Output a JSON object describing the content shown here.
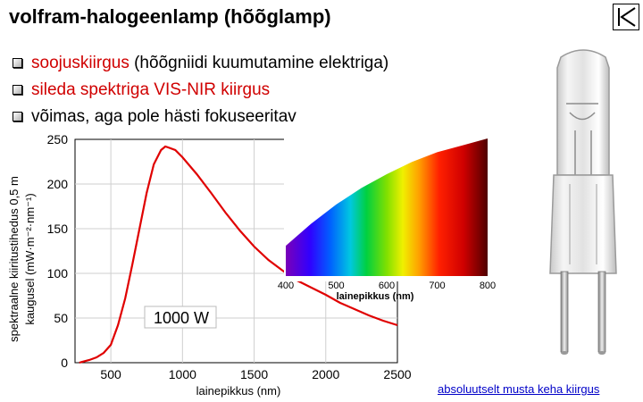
{
  "title": "volfram-halogeenlamp (hõõglamp)",
  "bullets": [
    {
      "main": "soojuskiirgus",
      "rest": " (hõõgniidi kuumutamine elektriga)"
    },
    {
      "main": "sileda spektriga VIS-NIR kiirgus",
      "rest": ""
    },
    {
      "main": "võimas, aga pole hästi fokuseeritav",
      "rest": ""
    }
  ],
  "colors": {
    "accent_red": "#d00000",
    "curve": "#e00000",
    "link": "#0000c8"
  },
  "chart_data": {
    "type": "line",
    "xlabel": "lainepikkus (nm)",
    "ylabel_line1": "spektraalne kiiritustihedus 0,5 m",
    "ylabel_line2": "kaugusel (mW·m⁻²·nm⁻¹)",
    "xlim": [
      250,
      2500
    ],
    "ylim": [
      0,
      250
    ],
    "xticks": [
      500,
      1000,
      1500,
      2000,
      2500
    ],
    "yticks": [
      0,
      50,
      100,
      150,
      200,
      250
    ],
    "annotation": "1000 W",
    "series": [
      {
        "x": [
          280,
          300,
          350,
          400,
          450,
          500,
          550,
          600,
          650,
          700,
          750,
          800,
          850,
          880,
          900,
          950,
          1000,
          1100,
          1200,
          1300,
          1400,
          1500,
          1600,
          1700,
          1800,
          1900,
          2000,
          2100,
          2200,
          2300,
          2400,
          2500
        ],
        "y": [
          0,
          1,
          3,
          6,
          11,
          20,
          42,
          72,
          110,
          150,
          190,
          222,
          238,
          242,
          241,
          238,
          230,
          211,
          190,
          168,
          148,
          130,
          115,
          103,
          92,
          84,
          76,
          67,
          60,
          53,
          47,
          42
        ]
      }
    ],
    "inset": {
      "type": "area",
      "xlabel": "lainepikkus (nm)",
      "xlim": [
        400,
        800
      ],
      "xticks": [
        400,
        500,
        600,
        700,
        800
      ],
      "x": [
        400,
        450,
        500,
        550,
        600,
        650,
        700,
        750,
        800
      ],
      "y": [
        0.22,
        0.38,
        0.52,
        0.64,
        0.74,
        0.83,
        0.9,
        0.95,
        1.0
      ]
    }
  },
  "footer_link": "absoluutselt musta keha kiirgus"
}
